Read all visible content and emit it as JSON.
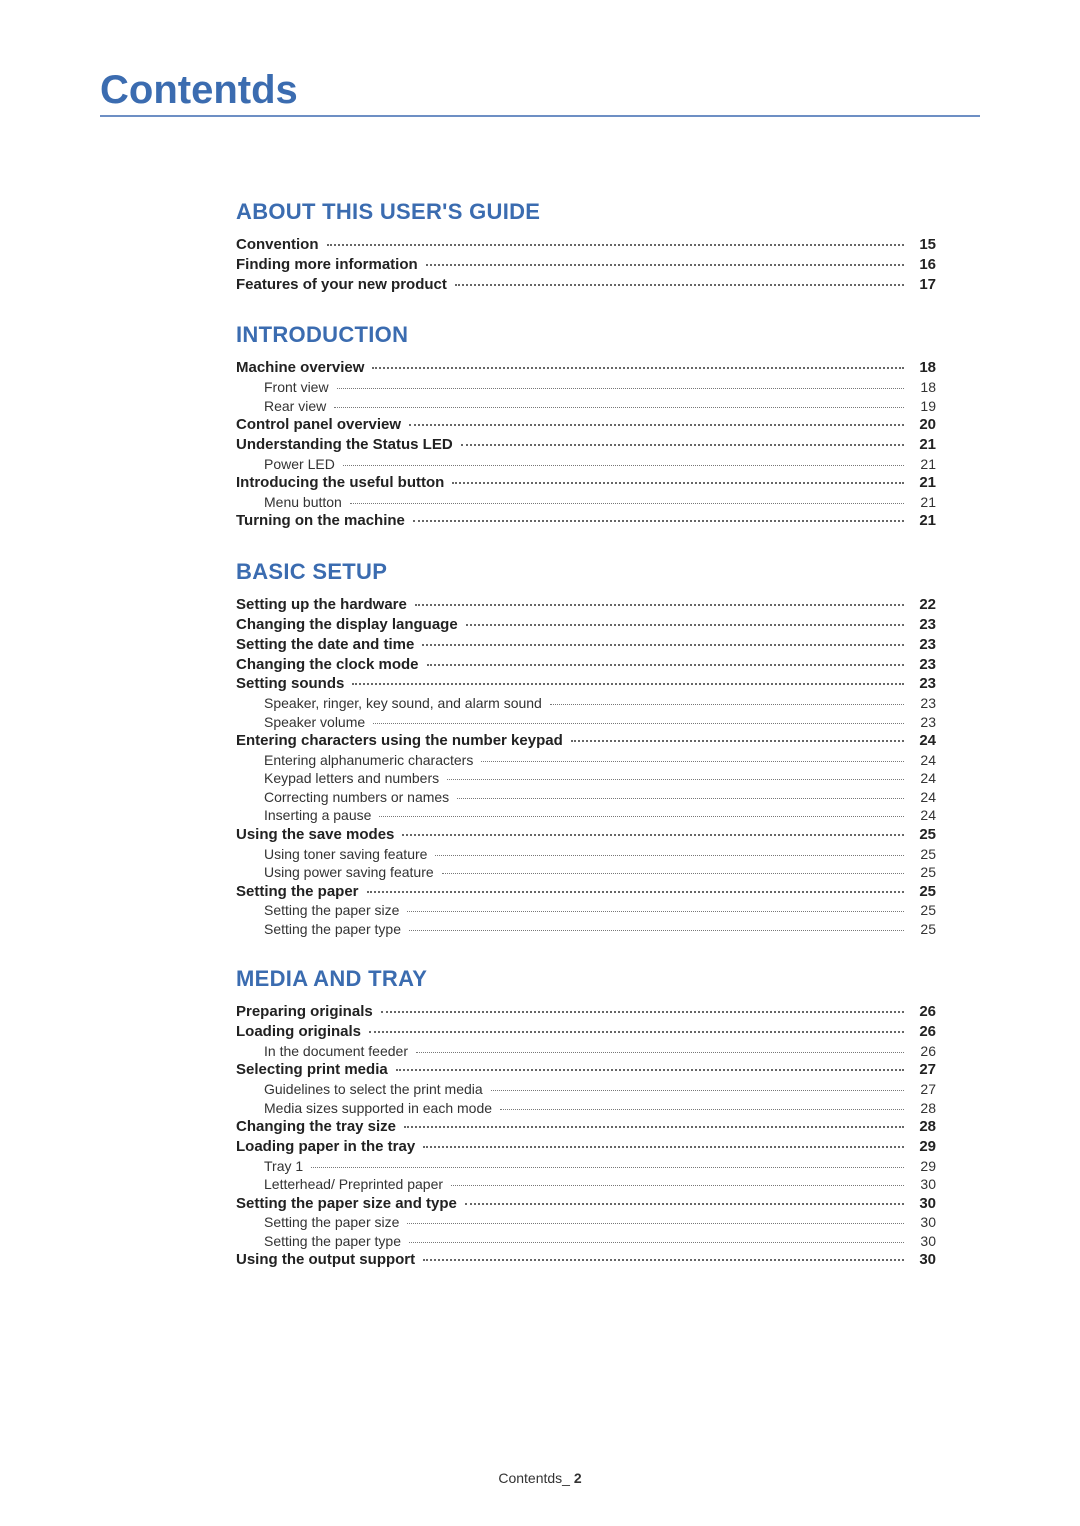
{
  "title": "Contentds",
  "footer_label": "Contentds_",
  "footer_page": "2",
  "sections": [
    {
      "heading": "ABOUT THIS USER'S GUIDE",
      "entries": [
        {
          "level": 1,
          "label": "Convention",
          "page": "15"
        },
        {
          "level": 1,
          "label": "Finding more information",
          "page": "16"
        },
        {
          "level": 1,
          "label": "Features of your new product",
          "page": "17"
        }
      ]
    },
    {
      "heading": "INTRODUCTION",
      "entries": [
        {
          "level": 1,
          "label": "Machine overview",
          "page": "18"
        },
        {
          "level": 2,
          "label": "Front view",
          "page": "18"
        },
        {
          "level": 2,
          "label": "Rear view",
          "page": "19"
        },
        {
          "level": 1,
          "label": "Control panel overview",
          "page": "20"
        },
        {
          "level": 1,
          "label": "Understanding the Status LED",
          "page": "21"
        },
        {
          "level": 2,
          "label": "Power LED",
          "page": "21"
        },
        {
          "level": 1,
          "label": "Introducing the useful button",
          "page": "21"
        },
        {
          "level": 2,
          "label": "Menu button",
          "page": "21"
        },
        {
          "level": 1,
          "label": "Turning on the machine",
          "page": "21"
        }
      ]
    },
    {
      "heading": "BASIC SETUP",
      "entries": [
        {
          "level": 1,
          "label": "Setting up the hardware",
          "page": "22"
        },
        {
          "level": 1,
          "label": "Changing the display language",
          "page": "23"
        },
        {
          "level": 1,
          "label": "Setting the date and time",
          "page": "23"
        },
        {
          "level": 1,
          "label": "Changing the clock mode",
          "page": "23"
        },
        {
          "level": 1,
          "label": "Setting sounds",
          "page": "23"
        },
        {
          "level": 2,
          "label": "Speaker, ringer, key sound, and alarm sound",
          "page": "23"
        },
        {
          "level": 2,
          "label": "Speaker volume",
          "page": "23"
        },
        {
          "level": 1,
          "label": "Entering characters using the number keypad",
          "page": "24"
        },
        {
          "level": 2,
          "label": "Entering alphanumeric characters",
          "page": "24"
        },
        {
          "level": 2,
          "label": "Keypad letters and numbers",
          "page": "24"
        },
        {
          "level": 2,
          "label": "Correcting numbers or names",
          "page": "24"
        },
        {
          "level": 2,
          "label": "Inserting a pause",
          "page": "24"
        },
        {
          "level": 1,
          "label": "Using the save modes",
          "page": "25"
        },
        {
          "level": 2,
          "label": "Using toner saving feature",
          "page": "25"
        },
        {
          "level": 2,
          "label": "Using power saving feature",
          "page": "25"
        },
        {
          "level": 1,
          "label": "Setting the paper",
          "page": "25"
        },
        {
          "level": 2,
          "label": "Setting the paper size",
          "page": "25"
        },
        {
          "level": 2,
          "label": "Setting the paper type",
          "page": "25"
        }
      ]
    },
    {
      "heading": "MEDIA AND TRAY",
      "entries": [
        {
          "level": 1,
          "label": "Preparing originals",
          "page": "26"
        },
        {
          "level": 1,
          "label": "Loading originals",
          "page": "26"
        },
        {
          "level": 2,
          "label": "In the document feeder",
          "page": "26"
        },
        {
          "level": 1,
          "label": "Selecting print media",
          "page": "27"
        },
        {
          "level": 2,
          "label": "Guidelines to select the print media",
          "page": "27"
        },
        {
          "level": 2,
          "label": "Media sizes supported in each mode",
          "page": "28"
        },
        {
          "level": 1,
          "label": "Changing the tray size",
          "page": "28"
        },
        {
          "level": 1,
          "label": "Loading paper in the tray",
          "page": "29"
        },
        {
          "level": 2,
          "label": "Tray 1",
          "page": "29"
        },
        {
          "level": 2,
          "label": "Letterhead/ Preprinted paper",
          "page": "30"
        },
        {
          "level": 1,
          "label": "Setting the paper size and type",
          "page": "30"
        },
        {
          "level": 2,
          "label": "Setting the paper size",
          "page": "30"
        },
        {
          "level": 2,
          "label": "Setting the paper type",
          "page": "30"
        },
        {
          "level": 1,
          "label": "Using the output support",
          "page": "30"
        }
      ]
    }
  ]
}
